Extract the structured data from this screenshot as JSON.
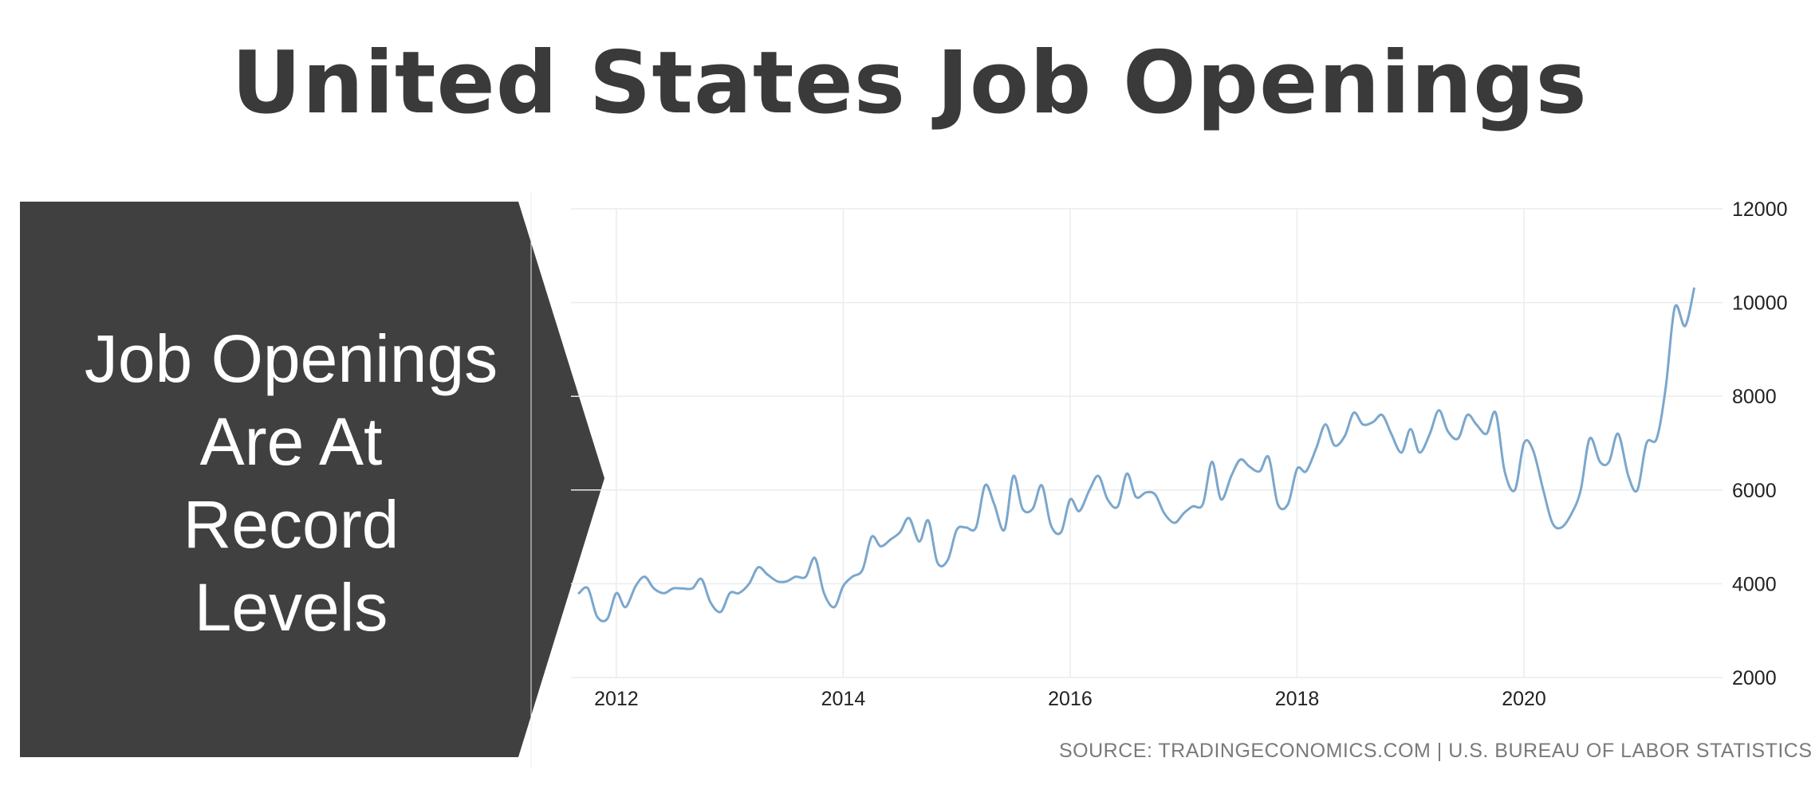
{
  "title": "United States Job Openings",
  "callout": {
    "lines": [
      "Job Openings",
      "Are At",
      "Record",
      "Levels"
    ],
    "background_color": "#404040"
  },
  "source": "SOURCE: TRADINGECONOMICS.COM | U.S. BUREAU OF LABOR STATISTICS",
  "chart_data": {
    "type": "line",
    "title": "",
    "xlabel": "",
    "ylabel": "",
    "xlim": [
      2011.6,
      2021.75
    ],
    "ylim": [
      2000,
      12000
    ],
    "x_ticks": [
      2012,
      2014,
      2016,
      2018,
      2020
    ],
    "y_ticks": [
      2000,
      4000,
      6000,
      8000,
      10000,
      12000
    ],
    "grid": true,
    "y_axis_side": "right",
    "line_color": "#7ba7cc",
    "series": [
      {
        "values_x": [
          2011.67,
          2011.75,
          2011.83,
          2011.92,
          2012.0,
          2012.08,
          2012.17,
          2012.25,
          2012.33,
          2012.42,
          2012.5,
          2012.58,
          2012.67,
          2012.75,
          2012.83,
          2012.92,
          2013.0,
          2013.08,
          2013.17,
          2013.25,
          2013.33,
          2013.42,
          2013.5,
          2013.58,
          2013.67,
          2013.75,
          2013.83,
          2013.92,
          2014.0,
          2014.08,
          2014.17,
          2014.25,
          2014.33,
          2014.42,
          2014.5,
          2014.58,
          2014.67,
          2014.75,
          2014.83,
          2014.92,
          2015.0,
          2015.08,
          2015.17,
          2015.25,
          2015.33,
          2015.42,
          2015.5,
          2015.58,
          2015.67,
          2015.75,
          2015.83,
          2015.92,
          2016.0,
          2016.08,
          2016.17,
          2016.25,
          2016.33,
          2016.42,
          2016.5,
          2016.58,
          2016.67,
          2016.75,
          2016.83,
          2016.92,
          2017.0,
          2017.08,
          2017.17,
          2017.25,
          2017.33,
          2017.42,
          2017.5,
          2017.58,
          2017.67,
          2017.75,
          2017.83,
          2017.92,
          2018.0,
          2018.08,
          2018.17,
          2018.25,
          2018.33,
          2018.42,
          2018.5,
          2018.58,
          2018.67,
          2018.75,
          2018.83,
          2018.92,
          2019.0,
          2019.08,
          2019.17,
          2019.25,
          2019.33,
          2019.42,
          2019.5,
          2019.58,
          2019.67,
          2019.75,
          2019.83,
          2019.92,
          2020.0,
          2020.08,
          2020.17,
          2020.25,
          2020.33,
          2020.42,
          2020.5,
          2020.58,
          2020.67,
          2020.75,
          2020.83,
          2020.92,
          2021.0,
          2021.08,
          2021.17,
          2021.25,
          2021.33,
          2021.42,
          2021.5
        ],
        "values_y": [
          3800,
          3900,
          3300,
          3250,
          3800,
          3500,
          3950,
          4150,
          3900,
          3800,
          3900,
          3900,
          3900,
          4100,
          3600,
          3400,
          3800,
          3800,
          4000,
          4350,
          4200,
          4050,
          4050,
          4150,
          4150,
          4550,
          3800,
          3500,
          3950,
          4150,
          4300,
          5000,
          4800,
          4950,
          5100,
          5400,
          4900,
          5350,
          4450,
          4500,
          5150,
          5200,
          5200,
          6100,
          5700,
          5150,
          6300,
          5600,
          5600,
          6100,
          5250,
          5100,
          5800,
          5550,
          6000,
          6300,
          5800,
          5650,
          6350,
          5850,
          5950,
          5900,
          5500,
          5300,
          5500,
          5650,
          5700,
          6600,
          5800,
          6300,
          6650,
          6500,
          6400,
          6700,
          5700,
          5700,
          6450,
          6400,
          6900,
          7400,
          6950,
          7150,
          7650,
          7400,
          7450,
          7600,
          7200,
          6800,
          7300,
          6800,
          7200,
          7700,
          7250,
          7100,
          7600,
          7400,
          7200,
          7650,
          6400,
          6000,
          7000,
          6850,
          6000,
          5300,
          5200,
          5500,
          6000,
          7100,
          6600,
          6600,
          7200,
          6300,
          6000,
          7000,
          7100,
          8200,
          9900,
          9500,
          10300
        ]
      }
    ]
  }
}
